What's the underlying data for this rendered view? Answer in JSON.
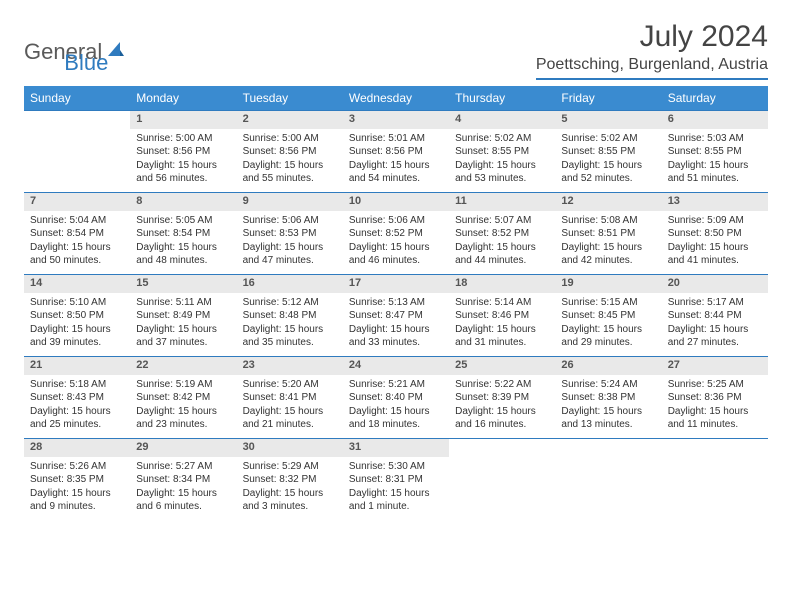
{
  "brand": {
    "part1": "General",
    "part2": "Blue"
  },
  "title": "July 2024",
  "location": "Poettsching, Burgenland, Austria",
  "colors": {
    "header_bg": "#3a8bd0",
    "accent": "#2f7bbf",
    "daynum_bg": "#e9e9e9",
    "text": "#333333"
  },
  "weekdays": [
    "Sunday",
    "Monday",
    "Tuesday",
    "Wednesday",
    "Thursday",
    "Friday",
    "Saturday"
  ],
  "weeks": [
    [
      null,
      {
        "n": "1",
        "sr": "5:00 AM",
        "ss": "8:56 PM",
        "dl": "15 hours and 56 minutes."
      },
      {
        "n": "2",
        "sr": "5:00 AM",
        "ss": "8:56 PM",
        "dl": "15 hours and 55 minutes."
      },
      {
        "n": "3",
        "sr": "5:01 AM",
        "ss": "8:56 PM",
        "dl": "15 hours and 54 minutes."
      },
      {
        "n": "4",
        "sr": "5:02 AM",
        "ss": "8:55 PM",
        "dl": "15 hours and 53 minutes."
      },
      {
        "n": "5",
        "sr": "5:02 AM",
        "ss": "8:55 PM",
        "dl": "15 hours and 52 minutes."
      },
      {
        "n": "6",
        "sr": "5:03 AM",
        "ss": "8:55 PM",
        "dl": "15 hours and 51 minutes."
      }
    ],
    [
      {
        "n": "7",
        "sr": "5:04 AM",
        "ss": "8:54 PM",
        "dl": "15 hours and 50 minutes."
      },
      {
        "n": "8",
        "sr": "5:05 AM",
        "ss": "8:54 PM",
        "dl": "15 hours and 48 minutes."
      },
      {
        "n": "9",
        "sr": "5:06 AM",
        "ss": "8:53 PM",
        "dl": "15 hours and 47 minutes."
      },
      {
        "n": "10",
        "sr": "5:06 AM",
        "ss": "8:52 PM",
        "dl": "15 hours and 46 minutes."
      },
      {
        "n": "11",
        "sr": "5:07 AM",
        "ss": "8:52 PM",
        "dl": "15 hours and 44 minutes."
      },
      {
        "n": "12",
        "sr": "5:08 AM",
        "ss": "8:51 PM",
        "dl": "15 hours and 42 minutes."
      },
      {
        "n": "13",
        "sr": "5:09 AM",
        "ss": "8:50 PM",
        "dl": "15 hours and 41 minutes."
      }
    ],
    [
      {
        "n": "14",
        "sr": "5:10 AM",
        "ss": "8:50 PM",
        "dl": "15 hours and 39 minutes."
      },
      {
        "n": "15",
        "sr": "5:11 AM",
        "ss": "8:49 PM",
        "dl": "15 hours and 37 minutes."
      },
      {
        "n": "16",
        "sr": "5:12 AM",
        "ss": "8:48 PM",
        "dl": "15 hours and 35 minutes."
      },
      {
        "n": "17",
        "sr": "5:13 AM",
        "ss": "8:47 PM",
        "dl": "15 hours and 33 minutes."
      },
      {
        "n": "18",
        "sr": "5:14 AM",
        "ss": "8:46 PM",
        "dl": "15 hours and 31 minutes."
      },
      {
        "n": "19",
        "sr": "5:15 AM",
        "ss": "8:45 PM",
        "dl": "15 hours and 29 minutes."
      },
      {
        "n": "20",
        "sr": "5:17 AM",
        "ss": "8:44 PM",
        "dl": "15 hours and 27 minutes."
      }
    ],
    [
      {
        "n": "21",
        "sr": "5:18 AM",
        "ss": "8:43 PM",
        "dl": "15 hours and 25 minutes."
      },
      {
        "n": "22",
        "sr": "5:19 AM",
        "ss": "8:42 PM",
        "dl": "15 hours and 23 minutes."
      },
      {
        "n": "23",
        "sr": "5:20 AM",
        "ss": "8:41 PM",
        "dl": "15 hours and 21 minutes."
      },
      {
        "n": "24",
        "sr": "5:21 AM",
        "ss": "8:40 PM",
        "dl": "15 hours and 18 minutes."
      },
      {
        "n": "25",
        "sr": "5:22 AM",
        "ss": "8:39 PM",
        "dl": "15 hours and 16 minutes."
      },
      {
        "n": "26",
        "sr": "5:24 AM",
        "ss": "8:38 PM",
        "dl": "15 hours and 13 minutes."
      },
      {
        "n": "27",
        "sr": "5:25 AM",
        "ss": "8:36 PM",
        "dl": "15 hours and 11 minutes."
      }
    ],
    [
      {
        "n": "28",
        "sr": "5:26 AM",
        "ss": "8:35 PM",
        "dl": "15 hours and 9 minutes."
      },
      {
        "n": "29",
        "sr": "5:27 AM",
        "ss": "8:34 PM",
        "dl": "15 hours and 6 minutes."
      },
      {
        "n": "30",
        "sr": "5:29 AM",
        "ss": "8:32 PM",
        "dl": "15 hours and 3 minutes."
      },
      {
        "n": "31",
        "sr": "5:30 AM",
        "ss": "8:31 PM",
        "dl": "15 hours and 1 minute."
      },
      null,
      null,
      null
    ]
  ],
  "labels": {
    "sunrise": "Sunrise:",
    "sunset": "Sunset:",
    "daylight": "Daylight:"
  }
}
